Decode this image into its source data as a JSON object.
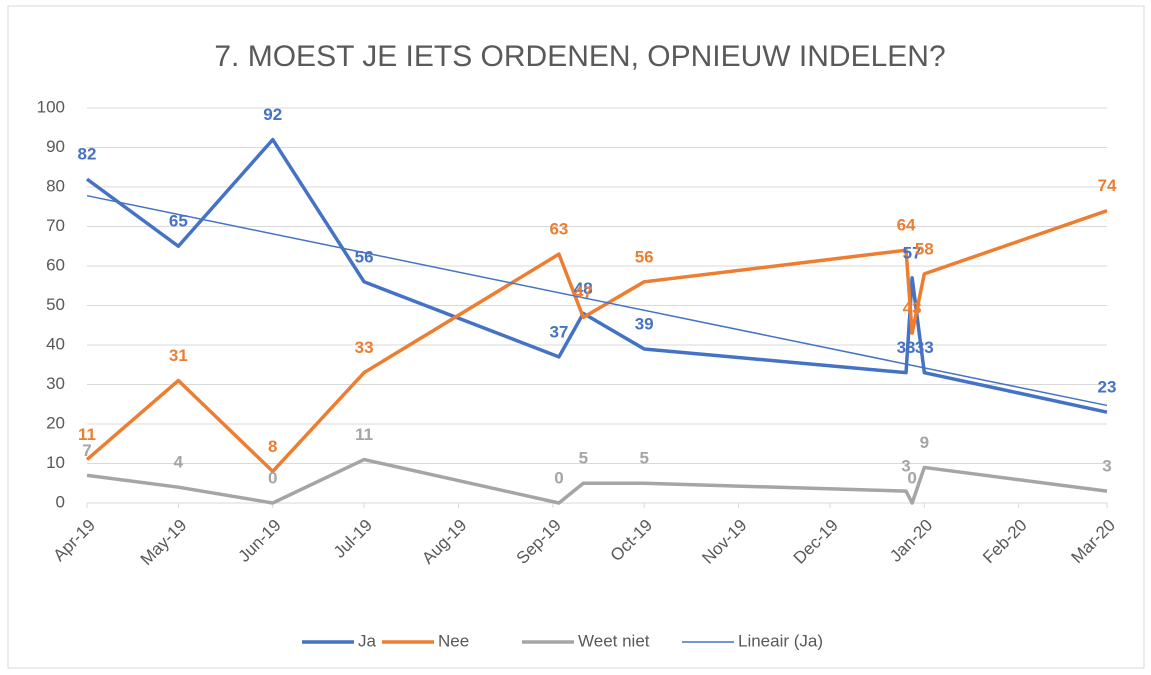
{
  "chart_data": {
    "type": "line",
    "title": "7. MOEST JE IETS ORDENEN, OPNIEUW INDELEN?",
    "x": [
      "2019-04-01",
      "2019-05-01",
      "2019-06-01",
      "2019-07-01",
      "2019-09-03",
      "2019-09-11",
      "2019-10-01",
      "2019-12-26",
      "2019-12-28",
      "2020-01-01",
      "2020-03-01"
    ],
    "series": [
      {
        "name": "Ja",
        "color": "#4472c4",
        "values": [
          82,
          65,
          92,
          56,
          37,
          48,
          39,
          33,
          57,
          33,
          23
        ]
      },
      {
        "name": "Nee",
        "color": "#ed7d31",
        "values": [
          11,
          31,
          8,
          33,
          63,
          47,
          56,
          64,
          43,
          58,
          74
        ]
      },
      {
        "name": "Weet niet",
        "color": "#a5a5a5",
        "values": [
          7,
          4,
          0,
          11,
          0,
          5,
          5,
          3,
          0,
          9,
          3
        ]
      }
    ],
    "trendline": {
      "name": "Lineair (Ja)",
      "color": "#4472c4",
      "x": [
        "2019-04-01",
        "2020-03-01"
      ],
      "values": [
        77.8,
        24.7
      ]
    },
    "xlim": [
      "2019-04-01",
      "2020-03-01"
    ],
    "xticks": [
      {
        "value": "2019-04-01",
        "label": "Apr-19"
      },
      {
        "value": "2019-05-01",
        "label": "May-19"
      },
      {
        "value": "2019-06-01",
        "label": "Jun-19"
      },
      {
        "value": "2019-07-01",
        "label": "Jul-19"
      },
      {
        "value": "2019-08-01",
        "label": "Aug-19"
      },
      {
        "value": "2019-09-01",
        "label": "Sep-19"
      },
      {
        "value": "2019-10-01",
        "label": "Oct-19"
      },
      {
        "value": "2019-11-01",
        "label": "Nov-19"
      },
      {
        "value": "2019-12-01",
        "label": "Dec-19"
      },
      {
        "value": "2020-01-01",
        "label": "Jan-20"
      },
      {
        "value": "2020-02-01",
        "label": "Feb-20"
      },
      {
        "value": "2020-03-01",
        "label": "Mar-20"
      }
    ],
    "ylim": [
      0,
      100
    ],
    "yticks": [
      0,
      10,
      20,
      30,
      40,
      50,
      60,
      70,
      80,
      90,
      100
    ],
    "grid": true,
    "legend": "bottom"
  }
}
